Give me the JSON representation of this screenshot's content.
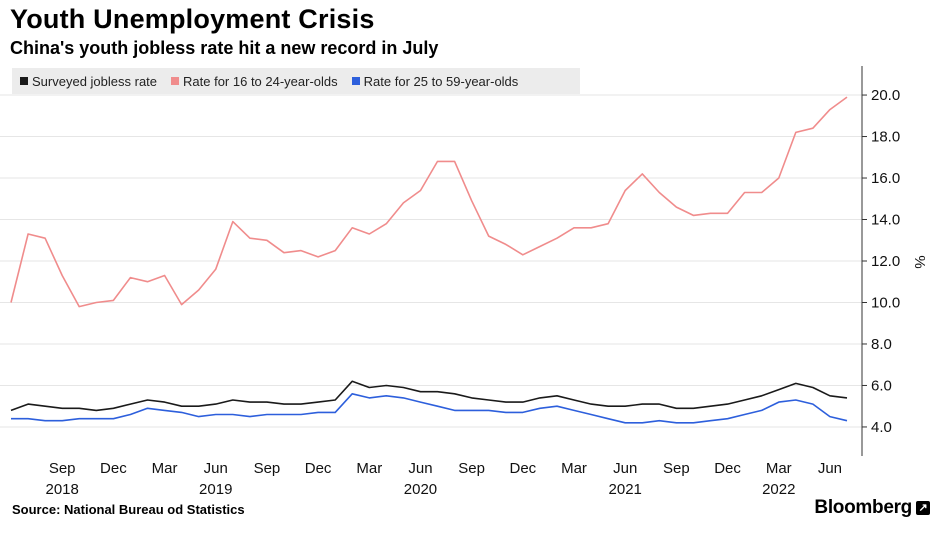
{
  "chart_data": {
    "type": "line",
    "title": "Youth Unemployment Crisis",
    "subtitle": "China's youth jobless rate hit a new record in July",
    "ylabel": "%",
    "ylim": [
      2.6,
      21.4
    ],
    "yticks": [
      4.0,
      6.0,
      8.0,
      10.0,
      12.0,
      14.0,
      16.0,
      18.0,
      20.0
    ],
    "ytick_labels": [
      "4.0",
      "6.0",
      "8.0",
      "10.0",
      "12.0",
      "14.0",
      "16.0",
      "18.0",
      "20.0"
    ],
    "grid": true,
    "x_start": "2018-06",
    "x_ticks": [
      {
        "month_index": 3,
        "label": "Sep",
        "year": "2018"
      },
      {
        "month_index": 6,
        "label": "Dec",
        "year": ""
      },
      {
        "month_index": 9,
        "label": "Mar",
        "year": ""
      },
      {
        "month_index": 12,
        "label": "Jun",
        "year": "2019"
      },
      {
        "month_index": 15,
        "label": "Sep",
        "year": ""
      },
      {
        "month_index": 18,
        "label": "Dec",
        "year": ""
      },
      {
        "month_index": 21,
        "label": "Mar",
        "year": ""
      },
      {
        "month_index": 24,
        "label": "Jun",
        "year": "2020"
      },
      {
        "month_index": 27,
        "label": "Sep",
        "year": ""
      },
      {
        "month_index": 30,
        "label": "Dec",
        "year": ""
      },
      {
        "month_index": 33,
        "label": "Mar",
        "year": ""
      },
      {
        "month_index": 36,
        "label": "Jun",
        "year": "2021"
      },
      {
        "month_index": 39,
        "label": "Sep",
        "year": ""
      },
      {
        "month_index": 42,
        "label": "Dec",
        "year": ""
      },
      {
        "month_index": 45,
        "label": "Mar",
        "year": "2022"
      },
      {
        "month_index": 48,
        "label": "Jun",
        "year": ""
      }
    ],
    "series": [
      {
        "name": "Surveyed jobless rate",
        "color": "#1a1a1a",
        "values": [
          4.8,
          5.1,
          5.0,
          4.9,
          4.9,
          4.8,
          4.9,
          5.1,
          5.3,
          5.2,
          5.0,
          5.0,
          5.1,
          5.3,
          5.2,
          5.2,
          5.1,
          5.1,
          5.2,
          5.3,
          6.2,
          5.9,
          6.0,
          5.9,
          5.7,
          5.7,
          5.6,
          5.4,
          5.3,
          5.2,
          5.2,
          5.4,
          5.5,
          5.3,
          5.1,
          5.0,
          5.0,
          5.1,
          5.1,
          4.9,
          4.9,
          5.0,
          5.1,
          5.3,
          5.5,
          5.8,
          6.1,
          5.9,
          5.5,
          5.4
        ]
      },
      {
        "name": "Rate for 16 to 24-year-olds",
        "color": "#f08c8c",
        "values": [
          10.0,
          13.3,
          13.1,
          11.3,
          9.8,
          10.0,
          10.1,
          11.2,
          11.0,
          11.3,
          9.9,
          10.6,
          11.6,
          13.9,
          13.1,
          13.0,
          12.4,
          12.5,
          12.2,
          12.5,
          13.6,
          13.3,
          13.8,
          14.8,
          15.4,
          16.8,
          16.8,
          14.9,
          13.2,
          12.8,
          12.3,
          12.7,
          13.1,
          13.6,
          13.6,
          13.8,
          15.4,
          16.2,
          15.3,
          14.6,
          14.2,
          14.3,
          14.3,
          15.3,
          15.3,
          16.0,
          18.2,
          18.4,
          19.3,
          19.9
        ]
      },
      {
        "name": "Rate for 25 to 59-year-olds",
        "color": "#2d5fdc",
        "values": [
          4.4,
          4.4,
          4.3,
          4.3,
          4.4,
          4.4,
          4.4,
          4.6,
          4.9,
          4.8,
          4.7,
          4.5,
          4.6,
          4.6,
          4.5,
          4.6,
          4.6,
          4.6,
          4.7,
          4.7,
          5.6,
          5.4,
          5.5,
          5.4,
          5.2,
          5.0,
          4.8,
          4.8,
          4.8,
          4.7,
          4.7,
          4.9,
          5.0,
          4.8,
          4.6,
          4.4,
          4.2,
          4.2,
          4.3,
          4.2,
          4.2,
          4.3,
          4.4,
          4.6,
          4.8,
          5.2,
          5.3,
          5.1,
          4.5,
          4.3
        ]
      }
    ]
  },
  "source": "Source: National Bureau od Statistics",
  "brand": "Bloomberg",
  "brand_icon": "bloomberg-terminal-icon"
}
